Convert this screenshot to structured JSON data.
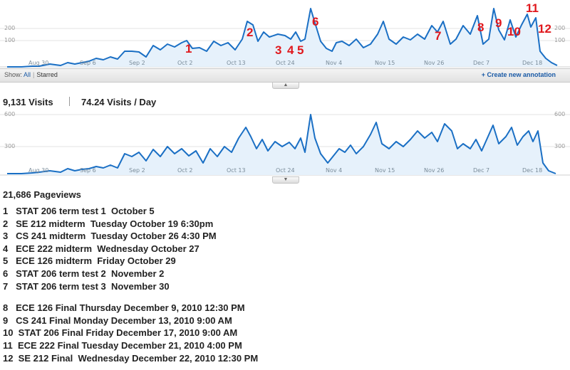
{
  "top_chart": {
    "y_labels": [
      "200",
      "100"
    ],
    "x_labels": [
      "Aug 30",
      "Sep 6",
      "Sep 2",
      "Oct 2",
      "Oct 13",
      "Oct 24",
      "Nov 4",
      "Nov 15",
      "Nov 26",
      "Dec 7",
      "Dec 18"
    ],
    "line_color": "#1a6fc4",
    "fill_color": "#e6f1fb",
    "annotations": [
      "1",
      "2",
      "3",
      "4",
      "5",
      "6",
      "7",
      "8",
      "9",
      "10",
      "11",
      "12"
    ]
  },
  "annotation_bar": {
    "show_label": "Show:",
    "all_link": "All",
    "starred_link": "Starred",
    "create_link": "+ Create new annotation"
  },
  "stats": {
    "visits": "9,131 Visits",
    "visits_per_day": "74.24 Visits / Day"
  },
  "bottom_chart": {
    "y_labels": [
      "600",
      "300"
    ],
    "x_labels": [
      "Aug 30",
      "Sep 6",
      "Sep 2",
      "Oct 2",
      "Oct 13",
      "Oct 24",
      "Nov 4",
      "Nov 15",
      "Nov 26",
      "Dec 7",
      "Dec 18"
    ]
  },
  "pageviews": "21,686 Pageviews",
  "exams": [
    "1   STAT 206 term test 1  October 5",
    "2   SE 212 midterm  Tuesday October 19 6:30pm",
    "3   CS 241 midterm  Tuesday October 26 4:30 PM",
    "4   ECE 222 midterm  Wednesday October 27",
    "5   ECE 126 midterm  Friday October 29",
    "6   STAT 206 term test 2  November 2",
    "7   STAT 206 term test 3  November 30",
    "8   ECE 126 Final Thursday December 9, 2010 12:30 PM",
    "9   CS 241 Final Monday December 13, 2010 9:00 AM",
    "10  STAT 206 Final Friday December 17, 2010 9:00 AM",
    "11  ECE 222 Final Tuesday December 21, 2010 4:00 PM",
    "12  SE 212 Final  Wednesday December 22, 2010 12:30 PM"
  ]
}
